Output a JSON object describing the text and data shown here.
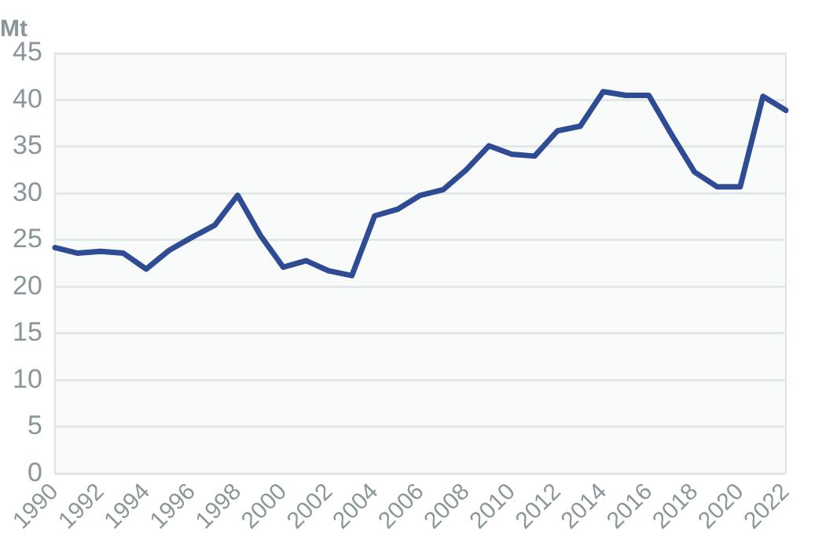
{
  "chart_data": {
    "type": "line",
    "ylabel": "Mt",
    "categories": [
      "1990",
      null,
      "1992",
      null,
      "1994",
      null,
      "1996",
      null,
      "1998",
      null,
      "2000",
      null,
      "2002",
      null,
      "2004",
      null,
      "2006",
      null,
      "2008",
      null,
      "2010",
      null,
      "2012",
      null,
      "2014",
      null,
      "2016",
      null,
      "2018",
      null,
      "2020",
      null,
      "2022"
    ],
    "series": [
      {
        "color": "#2e4b94",
        "values": [
          24.2,
          23.6,
          23.8,
          23.6,
          21.9,
          23.9,
          25.3,
          26.6,
          29.8,
          25.5,
          22.1,
          22.8,
          21.7,
          21.2,
          27.6,
          28.3,
          29.8,
          30.4,
          32.5,
          35.1,
          34.2,
          34.0,
          36.7,
          37.2,
          40.9,
          40.5,
          40.5,
          36.3,
          32.3,
          30.7,
          30.7,
          40.4,
          38.9
        ]
      }
    ],
    "ylim": [
      0,
      45
    ],
    "yticks": [
      0,
      5,
      10,
      15,
      20,
      25,
      30,
      35,
      40,
      45
    ],
    "grid": "y",
    "legend": false,
    "marker": "none",
    "line_style": "solid"
  }
}
